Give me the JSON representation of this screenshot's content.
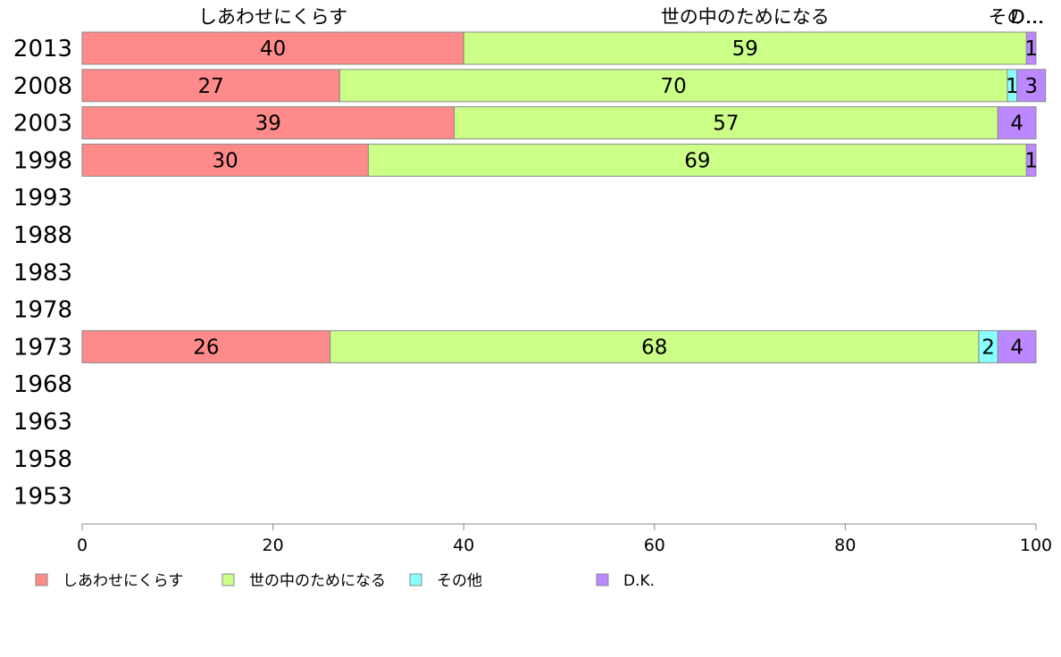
{
  "chart_data": {
    "type": "bar",
    "orientation": "horizontal",
    "stacked": true,
    "xlim": [
      0,
      100
    ],
    "x_ticks": [
      0,
      20,
      40,
      60,
      80,
      100
    ],
    "categories": [
      "2013",
      "2008",
      "2003",
      "1998",
      "1993",
      "1988",
      "1983",
      "1978",
      "1973",
      "1968",
      "1963",
      "1958",
      "1953"
    ],
    "series": [
      {
        "name": "しあわせにくらす",
        "color": "#ff8a8a",
        "values": [
          40,
          27,
          39,
          30,
          null,
          null,
          null,
          null,
          26,
          null,
          null,
          null,
          null
        ]
      },
      {
        "name": "世の中のためになる",
        "color": "#ccff88",
        "values": [
          59,
          70,
          57,
          69,
          null,
          null,
          null,
          null,
          68,
          null,
          null,
          null,
          null
        ]
      },
      {
        "name": "その他",
        "color": "#88ffff",
        "values": [
          0,
          1,
          0,
          0,
          null,
          null,
          null,
          null,
          2,
          null,
          null,
          null,
          null
        ]
      },
      {
        "name": "D.K.",
        "color": "#bb88ff",
        "values": [
          1,
          3,
          4,
          1,
          null,
          null,
          null,
          null,
          4,
          null,
          null,
          null,
          null
        ]
      }
    ],
    "top_labels": [
      "しあわせにくらす",
      "世の中のためになる",
      "その…",
      "D…"
    ],
    "legend_position": "bottom-left"
  }
}
